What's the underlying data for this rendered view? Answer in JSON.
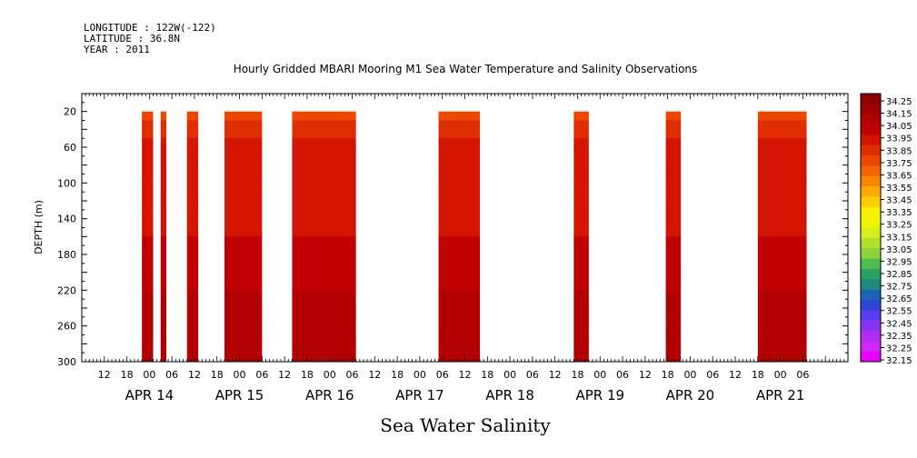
{
  "header": {
    "longitude": "LONGITUDE : 122W(-122)",
    "latitude": "LATITUDE : 36.8N",
    "year": "YEAR : 2011"
  },
  "chart_data": {
    "type": "heatmap",
    "title": "Hourly Gridded MBARI Mooring M1 Sea Water Temperature and Salinity Observations",
    "xlabel": "Sea Water Salinity",
    "ylabel": "DEPTH (m)",
    "x_range_hours": [
      -18,
      186
    ],
    "x_origin": "APR 14 00",
    "ylim": [
      300,
      0
    ],
    "y_ticks": [
      20,
      60,
      100,
      140,
      180,
      220,
      260,
      300
    ],
    "x_hour_tick_labels": [
      "12",
      "18",
      "00",
      "06",
      "12",
      "18",
      "00",
      "06",
      "12",
      "18",
      "00",
      "06",
      "12",
      "18",
      "00",
      "06",
      "12",
      "18",
      "00",
      "06",
      "12",
      "18",
      "00",
      "06",
      "12",
      "18",
      "00",
      "06",
      "12",
      "18",
      "00",
      "06"
    ],
    "x_day_labels": [
      "APR 14",
      "APR 15",
      "APR 16",
      "APR 17",
      "APR 18",
      "APR 19",
      "APR 20",
      "APR 21"
    ],
    "colorbar_levels": [
      "34.25",
      "34.15",
      "34.05",
      "33.95",
      "33.85",
      "33.75",
      "33.65",
      "33.55",
      "33.45",
      "33.35",
      "33.25",
      "33.15",
      "33.05",
      "32.95",
      "32.85",
      "32.75",
      "32.65",
      "32.55",
      "32.45",
      "32.35",
      "32.25",
      "32.15"
    ],
    "colorbar_colors": [
      "#8b0000",
      "#a00000",
      "#b20000",
      "#c00000",
      "#d21400",
      "#e02d00",
      "#ec4800",
      "#f56400",
      "#fa8600",
      "#fca800",
      "#fdcc00",
      "#f8f000",
      "#f0f400",
      "#d6ee1e",
      "#b2e02c",
      "#8ed23c",
      "#50bc50",
      "#2aa060",
      "#208c80",
      "#1e64b4",
      "#2e46d6",
      "#5a3cf0",
      "#8a32f2",
      "#b02ef4",
      "#d226f6",
      "#e800ff"
    ],
    "observation_segments": [
      {
        "start_hour": -2,
        "end_hour": 1
      },
      {
        "start_hour": 3,
        "end_hour": 4.5
      },
      {
        "start_hour": 10,
        "end_hour": 13
      },
      {
        "start_hour": 20,
        "end_hour": 30
      },
      {
        "start_hour": 38,
        "end_hour": 55
      },
      {
        "start_hour": 77,
        "end_hour": 88
      },
      {
        "start_hour": 113,
        "end_hour": 117
      },
      {
        "start_hour": 137.5,
        "end_hour": 141.5
      },
      {
        "start_hour": 162,
        "end_hour": 175
      }
    ],
    "salinity_profile": [
      {
        "depth": 20,
        "salinity": 33.72
      },
      {
        "depth": 40,
        "salinity": 33.8
      },
      {
        "depth": 60,
        "salinity": 33.87
      },
      {
        "depth": 80,
        "salinity": 33.9
      },
      {
        "depth": 100,
        "salinity": 33.92
      },
      {
        "depth": 140,
        "salinity": 33.93
      },
      {
        "depth": 180,
        "salinity": 33.98
      },
      {
        "depth": 220,
        "salinity": 34.05
      },
      {
        "depth": 260,
        "salinity": 34.15
      },
      {
        "depth": 300,
        "salinity": 34.1
      }
    ]
  }
}
